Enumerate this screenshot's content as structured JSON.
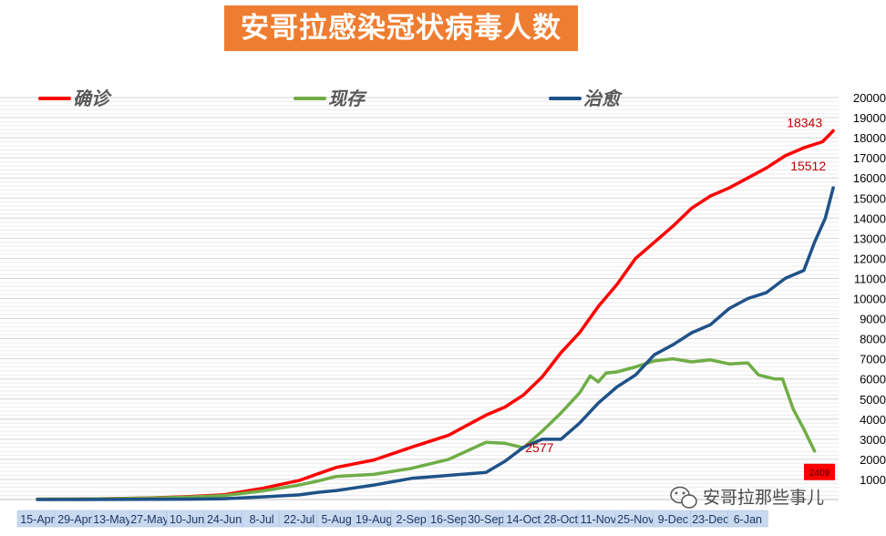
{
  "chart_data": {
    "type": "line",
    "title": "安哥拉感染冠状病毒人数",
    "legend_position": "top",
    "grid": true,
    "ylim": [
      0,
      20000
    ],
    "y_ticks": [
      1000,
      2000,
      3000,
      4000,
      5000,
      6000,
      7000,
      8000,
      9000,
      10000,
      11000,
      12000,
      13000,
      14000,
      15000,
      16000,
      17000,
      18000,
      19000,
      20000
    ],
    "x_tick_labels": [
      "15-Apr",
      "29-Apr",
      "13-May",
      "27-May",
      "10-Jun",
      "24-Jun",
      "8-Jul",
      "22-Jul",
      "5-Aug",
      "19-Aug",
      "2-Sep",
      "16-Sep",
      "30-Sep",
      "14-Oct",
      "28-Oct",
      "11-Nov",
      "25-Nov",
      "9-Dec",
      "23-Dec",
      "6-Jan"
    ],
    "series": [
      {
        "name": "确诊",
        "color": "#ff0000",
        "points": [
          [
            0,
            19
          ],
          [
            14,
            24
          ],
          [
            28,
            45
          ],
          [
            42,
            80
          ],
          [
            56,
            140
          ],
          [
            70,
            240
          ],
          [
            84,
            550
          ],
          [
            98,
            950
          ],
          [
            105,
            1280
          ],
          [
            112,
            1600
          ],
          [
            126,
            1970
          ],
          [
            140,
            2600
          ],
          [
            154,
            3200
          ],
          [
            168,
            4200
          ],
          [
            175,
            4600
          ],
          [
            182,
            5200
          ],
          [
            189,
            6100
          ],
          [
            196,
            7300
          ],
          [
            203,
            8300
          ],
          [
            210,
            9600
          ],
          [
            217,
            10700
          ],
          [
            224,
            12000
          ],
          [
            231,
            12800
          ],
          [
            238,
            13600
          ],
          [
            245,
            14500
          ],
          [
            252,
            15100
          ],
          [
            259,
            15500
          ],
          [
            266,
            16000
          ],
          [
            273,
            16500
          ],
          [
            280,
            17100
          ],
          [
            287,
            17500
          ],
          [
            294,
            17800
          ],
          [
            298,
            18343
          ]
        ]
      },
      {
        "name": "现存",
        "color": "#70ad47",
        "points": [
          [
            0,
            17
          ],
          [
            14,
            22
          ],
          [
            28,
            40
          ],
          [
            42,
            70
          ],
          [
            56,
            120
          ],
          [
            70,
            200
          ],
          [
            84,
            420
          ],
          [
            98,
            720
          ],
          [
            105,
            920
          ],
          [
            112,
            1150
          ],
          [
            126,
            1250
          ],
          [
            140,
            1550
          ],
          [
            154,
            2000
          ],
          [
            168,
            2850
          ],
          [
            175,
            2800
          ],
          [
            182,
            2577
          ],
          [
            189,
            3400
          ],
          [
            196,
            4300
          ],
          [
            203,
            5300
          ],
          [
            207,
            6150
          ],
          [
            210,
            5850
          ],
          [
            213,
            6300
          ],
          [
            217,
            6350
          ],
          [
            224,
            6600
          ],
          [
            231,
            6900
          ],
          [
            238,
            7000
          ],
          [
            245,
            6850
          ],
          [
            252,
            6950
          ],
          [
            259,
            6750
          ],
          [
            266,
            6800
          ],
          [
            270,
            6200
          ],
          [
            276,
            6000
          ],
          [
            279,
            6000
          ],
          [
            283,
            4500
          ],
          [
            287,
            3500
          ],
          [
            291,
            2409
          ]
        ]
      },
      {
        "name": "治愈",
        "color": "#1f5288",
        "points": [
          [
            0,
            2
          ],
          [
            14,
            2
          ],
          [
            28,
            5
          ],
          [
            42,
            10
          ],
          [
            56,
            20
          ],
          [
            70,
            40
          ],
          [
            84,
            130
          ],
          [
            98,
            230
          ],
          [
            105,
            360
          ],
          [
            112,
            450
          ],
          [
            126,
            720
          ],
          [
            140,
            1050
          ],
          [
            154,
            1200
          ],
          [
            168,
            1350
          ],
          [
            175,
            1900
          ],
          [
            182,
            2600
          ],
          [
            189,
            3000
          ],
          [
            196,
            3000
          ],
          [
            203,
            3800
          ],
          [
            210,
            4800
          ],
          [
            217,
            5600
          ],
          [
            224,
            6200
          ],
          [
            231,
            7200
          ],
          [
            238,
            7700
          ],
          [
            245,
            8300
          ],
          [
            252,
            8700
          ],
          [
            259,
            9500
          ],
          [
            266,
            10000
          ],
          [
            273,
            10300
          ],
          [
            280,
            11000
          ],
          [
            287,
            11400
          ],
          [
            291,
            12800
          ],
          [
            295,
            14000
          ],
          [
            298,
            15512
          ]
        ]
      }
    ],
    "data_labels": [
      {
        "text": "18343",
        "series": "确诊",
        "x": 298,
        "value": 18343
      },
      {
        "text": "15512",
        "series": "治愈",
        "x": 298,
        "value": 15512
      },
      {
        "text": "2577",
        "series": "现存",
        "x": 182,
        "value": 2577
      },
      {
        "text": "2409",
        "series": "现存",
        "x": 291,
        "value": 2409
      }
    ]
  },
  "watermark": {
    "text": "安哥拉那些事儿",
    "icon": "wechat-icon"
  }
}
